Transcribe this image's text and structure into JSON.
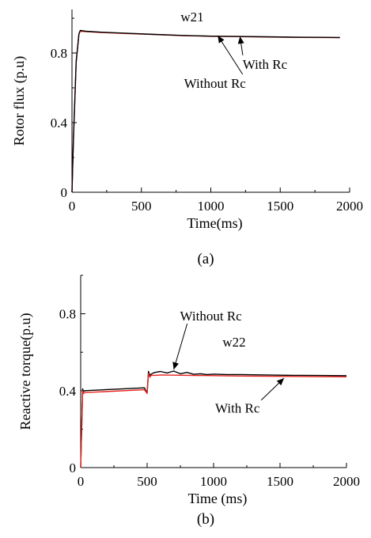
{
  "chart_data": [
    {
      "type": "line",
      "caption": "(a)",
      "title": "w21",
      "xlabel": "Time(ms)",
      "ylabel": "Rotor flux (p.u)",
      "xlim": [
        0,
        2000
      ],
      "ylim": [
        0,
        1.05
      ],
      "xticks": [
        "0",
        "500",
        "1000",
        "1500",
        "2000"
      ],
      "yticks": [
        "0",
        "0.4",
        "0.8"
      ],
      "ytick_values": [
        0,
        0.4,
        0.8
      ],
      "xtick_values": [
        0,
        500,
        1000,
        1500,
        2000
      ],
      "series": [
        {
          "color": "#e8231e",
          "x": [
            0,
            10,
            30,
            50,
            60,
            100,
            200,
            400,
            600,
            800,
            1000,
            1200,
            1400,
            1600,
            1800,
            1930
          ],
          "values": [
            0,
            0.3,
            0.75,
            0.91,
            0.925,
            0.923,
            0.918,
            0.912,
            0.906,
            0.9,
            0.896,
            0.894,
            0.892,
            0.89,
            0.889,
            0.888
          ]
        },
        {
          "color": "#000000",
          "x": [
            0,
            10,
            30,
            50,
            60,
            100,
            200,
            400,
            600,
            800,
            1000,
            1200,
            1400,
            1600,
            1800,
            1930
          ],
          "values": [
            0,
            0.3,
            0.75,
            0.91,
            0.93,
            0.925,
            0.92,
            0.913,
            0.907,
            0.901,
            0.897,
            0.895,
            0.893,
            0.891,
            0.89,
            0.889
          ]
        }
      ],
      "annotations": [
        {
          "text": "Without Rc",
          "x": 1030,
          "y": 0.6,
          "arrow_to": [
            1050,
            0.9
          ]
        },
        {
          "text": "With Rc",
          "x": 1390,
          "y": 0.71,
          "arrow_to": [
            1210,
            0.895
          ]
        }
      ]
    },
    {
      "type": "line",
      "caption": "(b)",
      "title": "w22",
      "xlabel": "Time (ms)",
      "ylabel": "Reactive torque(p.u)",
      "xlim": [
        0,
        2000
      ],
      "ylim": [
        0,
        1.0
      ],
      "xticks": [
        "0",
        "500",
        "1000",
        "1500",
        "2000"
      ],
      "yticks": [
        "0",
        "0.4",
        "0.8"
      ],
      "ytick_values": [
        0,
        0.4,
        0.8
      ],
      "xtick_values": [
        0,
        500,
        1000,
        1500,
        2000
      ],
      "series": [
        {
          "color": "#000000",
          "x": [
            0,
            15,
            20,
            30,
            480,
            490,
            500,
            510,
            520,
            530,
            540,
            560,
            600,
            650,
            700,
            750,
            800,
            850,
            900,
            950,
            1000,
            1100,
            1200,
            1400,
            1600,
            1800,
            2000
          ],
          "values": [
            0,
            0.41,
            0.395,
            0.4,
            0.415,
            0.4,
            0.39,
            0.5,
            0.48,
            0.485,
            0.49,
            0.495,
            0.5,
            0.492,
            0.502,
            0.488,
            0.495,
            0.485,
            0.488,
            0.484,
            0.486,
            0.484,
            0.484,
            0.482,
            0.48,
            0.479,
            0.478
          ]
        },
        {
          "color": "#e8231e",
          "x": [
            0,
            15,
            20,
            30,
            480,
            490,
            500,
            510,
            520,
            530,
            560,
            600,
            800,
            1000,
            1200,
            1400,
            1600,
            1800,
            2000
          ],
          "values": [
            0,
            0.4,
            0.385,
            0.39,
            0.405,
            0.395,
            0.385,
            0.49,
            0.47,
            0.48,
            0.48,
            0.482,
            0.48,
            0.478,
            0.476,
            0.475,
            0.474,
            0.473,
            0.472
          ]
        }
      ],
      "annotations": [
        {
          "text": "Without Rc",
          "x": 980,
          "y": 0.765,
          "arrow_to": [
            700,
            0.51
          ]
        },
        {
          "text": "With Rc",
          "x": 1180,
          "y": 0.285,
          "arrow_to": [
            1530,
            0.465
          ]
        }
      ]
    }
  ]
}
